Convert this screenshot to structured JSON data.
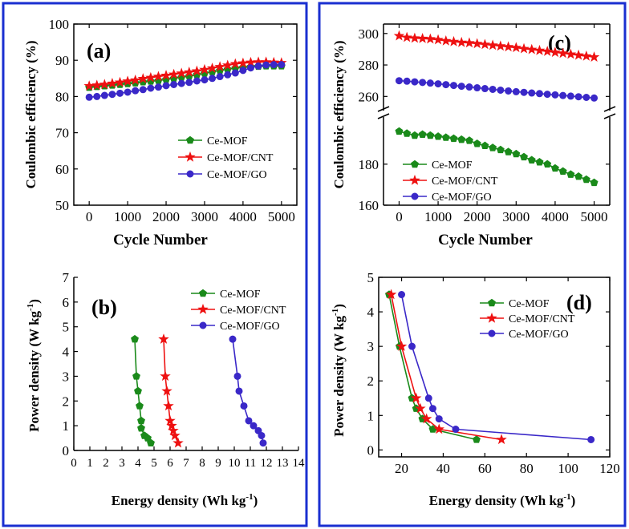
{
  "colors": {
    "frame": "#1a2fd0",
    "green": "#1a8a1a",
    "red": "#ee1111",
    "blue": "#3a28c8"
  },
  "chart_data": [
    {
      "type": "line",
      "panel_label": "(a)",
      "xlabel": "Cycle Number",
      "ylabel": "Coulombic efficiency (%)",
      "xlim": [
        -400,
        5400
      ],
      "ylim": [
        50,
        100
      ],
      "xticks": [
        "0",
        "1000",
        "2000",
        "3000",
        "4000",
        "5000"
      ],
      "yticks": [
        "50",
        "60",
        "70",
        "80",
        "90",
        "100"
      ],
      "legend_position": "center-right",
      "series": [
        {
          "name": "Ce-MOF",
          "color": "green",
          "marker": "pentagon",
          "x": [
            0,
            200,
            400,
            600,
            800,
            1000,
            1200,
            1400,
            1600,
            1800,
            2000,
            2200,
            2400,
            2600,
            2800,
            3000,
            3200,
            3400,
            3600,
            3800,
            4000,
            4200,
            4400,
            4600,
            4800,
            5000
          ],
          "y": [
            82.5,
            82.7,
            82.9,
            83.1,
            83.3,
            83.5,
            83.7,
            84.0,
            84.2,
            84.4,
            84.7,
            85.0,
            85.3,
            85.6,
            86.0,
            86.4,
            86.8,
            87.2,
            87.5,
            87.8,
            88.0,
            88.2,
            88.3,
            88.4,
            88.4,
            88.4
          ]
        },
        {
          "name": "Ce-MOF/CNT",
          "color": "red",
          "marker": "star",
          "x": [
            0,
            200,
            400,
            600,
            800,
            1000,
            1200,
            1400,
            1600,
            1800,
            2000,
            2200,
            2400,
            2600,
            2800,
            3000,
            3200,
            3400,
            3600,
            3800,
            4000,
            4200,
            4400,
            4600,
            4800,
            5000
          ],
          "y": [
            82.9,
            83.1,
            83.3,
            83.6,
            83.9,
            84.2,
            84.5,
            84.9,
            85.2,
            85.5,
            85.8,
            86.1,
            86.4,
            86.7,
            87.0,
            87.4,
            87.8,
            88.2,
            88.6,
            89.0,
            89.2,
            89.4,
            89.5,
            89.5,
            89.4,
            89.3
          ]
        },
        {
          "name": "Ce-MOF/GO",
          "color": "blue",
          "marker": "circle",
          "x": [
            0,
            200,
            400,
            600,
            800,
            1000,
            1200,
            1400,
            1600,
            1800,
            2000,
            2200,
            2400,
            2600,
            2800,
            3000,
            3200,
            3400,
            3600,
            3800,
            4000,
            4200,
            4400,
            4600,
            4800,
            5000
          ],
          "y": [
            79.8,
            80.0,
            80.3,
            80.6,
            80.9,
            81.2,
            81.6,
            81.9,
            82.3,
            82.6,
            83.0,
            83.3,
            83.6,
            83.9,
            84.3,
            84.6,
            85.0,
            85.5,
            86.0,
            86.5,
            87.2,
            87.9,
            88.4,
            88.7,
            88.8,
            88.8
          ]
        }
      ]
    },
    {
      "type": "line",
      "panel_label": "(b)",
      "xlabel": "Energy density (Wh kg",
      "xlabel_sup": "-1",
      "xlabel_end": ")",
      "ylabel": "Power density (W kg",
      "ylabel_sup": "-1",
      "ylabel_end": ")",
      "xlim": [
        0,
        14
      ],
      "ylim": [
        0,
        7
      ],
      "xticks": [
        "0",
        "1",
        "2",
        "3",
        "4",
        "5",
        "6",
        "7",
        "8",
        "9",
        "10",
        "11",
        "12",
        "13",
        "14"
      ],
      "yticks": [
        "0",
        "1",
        "2",
        "3",
        "4",
        "5",
        "6",
        "7"
      ],
      "legend_position": "top-right",
      "series": [
        {
          "name": "Ce-MOF",
          "color": "green",
          "marker": "pentagon",
          "x": [
            3.8,
            3.9,
            4.0,
            4.1,
            4.2,
            4.2,
            4.4,
            4.6,
            4.8
          ],
          "y": [
            4.5,
            3.0,
            2.4,
            1.8,
            1.2,
            0.9,
            0.6,
            0.5,
            0.3
          ]
        },
        {
          "name": "Ce-MOF/CNT",
          "color": "red",
          "marker": "star",
          "x": [
            5.6,
            5.7,
            5.8,
            5.9,
            6.0,
            6.1,
            6.2,
            6.3,
            6.5
          ],
          "y": [
            4.5,
            3.0,
            2.4,
            1.8,
            1.2,
            1.0,
            0.8,
            0.6,
            0.3
          ]
        },
        {
          "name": "Ce-MOF/GO",
          "color": "blue",
          "marker": "circle",
          "x": [
            9.9,
            10.2,
            10.3,
            10.6,
            10.9,
            11.2,
            11.5,
            11.7,
            11.8
          ],
          "y": [
            4.5,
            3.0,
            2.4,
            1.8,
            1.2,
            1.0,
            0.8,
            0.6,
            0.3
          ]
        }
      ]
    },
    {
      "type": "line",
      "panel_label": "(c)",
      "xlabel": "Cycle Number",
      "ylabel": "Coulombic efficiency (%)",
      "axis_break": true,
      "xlim": [
        -400,
        5400
      ],
      "upper_ylim": [
        251,
        306
      ],
      "lower_ylim": [
        160,
        203
      ],
      "xticks": [
        "0",
        "1000",
        "2000",
        "3000",
        "4000",
        "5000"
      ],
      "yticks_upper": [
        "260",
        "280",
        "300"
      ],
      "yticks_lower": [
        "160",
        "180"
      ],
      "legend_position": "center-left",
      "series": [
        {
          "name": "Ce-MOF",
          "color": "green",
          "marker": "pentagon",
          "x": [
            0,
            200,
            400,
            600,
            800,
            1000,
            1200,
            1400,
            1600,
            1800,
            2000,
            2200,
            2400,
            2600,
            2800,
            3000,
            3200,
            3400,
            3600,
            3800,
            4000,
            4200,
            4400,
            4600,
            4800,
            5000
          ],
          "y": [
            196.0,
            195.0,
            194.0,
            194.5,
            194.0,
            193.5,
            193.0,
            192.5,
            192.0,
            191.5,
            190.0,
            189.0,
            188.0,
            187.0,
            186.0,
            185.0,
            183.5,
            182.0,
            181.0,
            180.0,
            178.0,
            176.5,
            175.0,
            174.0,
            172.5,
            171.0
          ]
        },
        {
          "name": "Ce-MOF/CNT",
          "color": "red",
          "marker": "star",
          "x": [
            0,
            200,
            400,
            600,
            800,
            1000,
            1200,
            1400,
            1600,
            1800,
            2000,
            2200,
            2400,
            2600,
            2800,
            3000,
            3200,
            3400,
            3600,
            3800,
            4000,
            4200,
            4400,
            4600,
            4800,
            5000
          ],
          "y": [
            298.5,
            297.5,
            297.0,
            296.8,
            296.5,
            296.0,
            295.3,
            294.8,
            294.3,
            294.0,
            293.5,
            293.0,
            292.5,
            292.0,
            291.5,
            291.0,
            290.3,
            289.8,
            289.2,
            288.6,
            288.0,
            287.4,
            286.8,
            286.2,
            285.6,
            285.0
          ]
        },
        {
          "name": "Ce-MOF/GO",
          "color": "blue",
          "marker": "circle",
          "x": [
            0,
            200,
            400,
            600,
            800,
            1000,
            1200,
            1400,
            1600,
            1800,
            2000,
            2200,
            2400,
            2600,
            2800,
            3000,
            3200,
            3400,
            3600,
            3800,
            4000,
            4200,
            4400,
            4600,
            4800,
            5000
          ],
          "y": [
            270.0,
            269.7,
            269.3,
            268.9,
            268.5,
            268.0,
            267.5,
            267.0,
            266.5,
            266.0,
            265.5,
            265.0,
            264.5,
            264.0,
            263.5,
            263.0,
            262.6,
            262.2,
            261.8,
            261.4,
            261.0,
            260.6,
            260.2,
            259.8,
            259.4,
            259.0
          ]
        }
      ]
    },
    {
      "type": "line",
      "panel_label": "(d)",
      "xlabel": "Energy density (Wh kg",
      "xlabel_sup": "-1",
      "xlabel_end": ")",
      "ylabel": "Power density (W kg",
      "ylabel_sup": "-1",
      "ylabel_end": ")",
      "xlim": [
        9,
        120
      ],
      "ylim": [
        -0.2,
        5
      ],
      "xticks": [
        "20",
        "40",
        "60",
        "80",
        "100",
        "120"
      ],
      "xtick_values": [
        20,
        40,
        60,
        80,
        100,
        120
      ],
      "yticks": [
        "0",
        "1",
        "2",
        "3",
        "4",
        "5"
      ],
      "legend_position": "top-right",
      "series": [
        {
          "name": "Ce-MOF",
          "color": "green",
          "marker": "pentagon",
          "x": [
            14,
            19,
            25,
            27,
            30,
            35,
            56
          ],
          "y": [
            4.5,
            3.0,
            1.5,
            1.2,
            0.9,
            0.6,
            0.3
          ]
        },
        {
          "name": "Ce-MOF/CNT",
          "color": "red",
          "marker": "star",
          "x": [
            15,
            20,
            27,
            29,
            32,
            38,
            68
          ],
          "y": [
            4.5,
            3.0,
            1.5,
            1.2,
            0.9,
            0.6,
            0.3
          ]
        },
        {
          "name": "Ce-MOF/GO",
          "color": "blue",
          "marker": "circle",
          "x": [
            20,
            25,
            33,
            35,
            38,
            46,
            111
          ],
          "y": [
            4.5,
            3.0,
            1.5,
            1.2,
            0.9,
            0.6,
            0.3
          ]
        }
      ]
    }
  ]
}
